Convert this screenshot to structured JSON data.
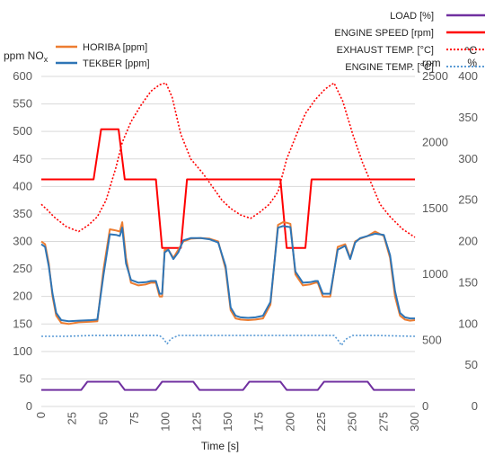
{
  "chart_data": {
    "type": "line",
    "xlabel": "Time [s]",
    "x_ticks": [
      "0",
      "25",
      "50",
      "75",
      "100",
      "125",
      "150",
      "175",
      "200",
      "225",
      "250",
      "275",
      "300"
    ],
    "xlim": [
      0,
      300
    ],
    "axes": {
      "left": {
        "label": "ppm NO",
        "label_sub": "x",
        "lim": [
          0,
          600
        ],
        "ticks": [
          "0",
          "50",
          "100",
          "150",
          "200",
          "250",
          "300",
          "350",
          "400",
          "450",
          "500",
          "550",
          "600"
        ]
      },
      "rpm": {
        "label": "rpm",
        "lim": [
          0,
          2500
        ],
        "ticks": [
          "0",
          "500",
          "1000",
          "1500",
          "2000",
          "2500"
        ]
      },
      "temp": {
        "label_top": "°C",
        "label_bottom": "%",
        "lim": [
          0,
          400
        ],
        "ticks": [
          "0",
          "50",
          "100",
          "150",
          "200",
          "250",
          "300",
          "350",
          "400"
        ]
      }
    },
    "legend_left": [
      {
        "name": "HORIBA [ppm]",
        "color": "#ed7d31",
        "style": "solid"
      },
      {
        "name": "TEKBER [ppm]",
        "color": "#2e75b6",
        "style": "solid"
      }
    ],
    "legend_right": [
      {
        "name": "LOAD [%]",
        "color": "#7030a0",
        "style": "solid"
      },
      {
        "name": "ENGINE SPEED [rpm]",
        "color": "#ff0000",
        "style": "solid"
      },
      {
        "name": "EXHAUST TEMP. [°C]",
        "color": "#ff0000",
        "style": "dotted"
      },
      {
        "name": "ENGINE TEMP. [°C]",
        "color": "#5b9bd5",
        "style": "dotted"
      }
    ],
    "series": [
      {
        "name": "LOAD [%]",
        "axis": "temp",
        "color": "#7030a0",
        "dash": "",
        "x": [
          0,
          32,
          37,
          62,
          67,
          92,
          97,
          122,
          127,
          162,
          167,
          192,
          197,
          222,
          227,
          262,
          267,
          300
        ],
        "y": [
          20,
          20,
          30,
          30,
          20,
          20,
          30,
          30,
          20,
          20,
          30,
          30,
          20,
          20,
          30,
          30,
          20,
          20
        ]
      },
      {
        "name": "ENGINE SPEED [rpm]",
        "axis": "rpm",
        "color": "#ff0000",
        "dash": "",
        "x": [
          0,
          42,
          48,
          62,
          67,
          92,
          97,
          112,
          117,
          142,
          147,
          192,
          197,
          212,
          217,
          242,
          247,
          292,
          297,
          300
        ],
        "y": [
          1720,
          1720,
          2100,
          2100,
          1720,
          1720,
          1200,
          1200,
          1720,
          1720,
          1720,
          1720,
          1200,
          1200,
          1720,
          1720,
          1720,
          1720,
          1720,
          1720
        ]
      },
      {
        "name": "EXHAUST TEMP. [°C]",
        "axis": "temp",
        "color": "#ff0000",
        "dash": "2 2",
        "x": [
          0,
          5,
          10,
          20,
          30,
          38,
          45,
          52,
          60,
          65,
          72,
          80,
          88,
          95,
          100,
          105,
          112,
          120,
          130,
          138,
          145,
          152,
          160,
          168,
          175,
          183,
          190,
          197,
          205,
          212,
          220,
          228,
          235,
          242,
          250,
          258,
          265,
          272,
          280,
          290,
          300
        ],
        "y": [
          245,
          238,
          230,
          218,
          212,
          220,
          230,
          250,
          290,
          320,
          345,
          365,
          382,
          390,
          392,
          375,
          330,
          300,
          282,
          265,
          250,
          240,
          232,
          228,
          235,
          245,
          260,
          300,
          330,
          355,
          372,
          385,
          392,
          370,
          330,
          295,
          270,
          245,
          230,
          215,
          205
        ]
      },
      {
        "name": "ENGINE TEMP. [°C]",
        "axis": "temp",
        "color": "#5b9bd5",
        "dash": "2 2",
        "x": [
          0,
          20,
          40,
          60,
          80,
          95,
          98,
          101,
          104,
          110,
          130,
          150,
          170,
          190,
          205,
          225,
          235,
          238,
          241,
          244,
          250,
          270,
          300
        ],
        "y": [
          85,
          85,
          86,
          86,
          86,
          86,
          82,
          76,
          82,
          86,
          86,
          86,
          86,
          86,
          86,
          86,
          86,
          81,
          74,
          81,
          86,
          86,
          85
        ]
      },
      {
        "name": "HORIBA [ppm]",
        "axis": "left",
        "color": "#ed7d31",
        "dash": "",
        "x": [
          0,
          3,
          6,
          9,
          12,
          16,
          22,
          30,
          40,
          45,
          50,
          55,
          60,
          63,
          65,
          68,
          72,
          78,
          84,
          88,
          92,
          95,
          97,
          99,
          102,
          106,
          110,
          114,
          120,
          128,
          135,
          142,
          148,
          152,
          156,
          160,
          166,
          172,
          178,
          184,
          190,
          194,
          197,
          200,
          204,
          210,
          216,
          220,
          222,
          226,
          232,
          238,
          244,
          248,
          252,
          256,
          262,
          268,
          275,
          280,
          284,
          288,
          292,
          296,
          300
        ],
        "y": [
          300,
          295,
          260,
          200,
          165,
          152,
          150,
          153,
          154,
          155,
          250,
          322,
          320,
          318,
          335,
          270,
          225,
          220,
          222,
          225,
          225,
          200,
          200,
          285,
          285,
          270,
          285,
          300,
          305,
          306,
          305,
          300,
          250,
          175,
          160,
          158,
          157,
          158,
          160,
          185,
          330,
          335,
          334,
          332,
          240,
          220,
          222,
          225,
          225,
          200,
          200,
          290,
          295,
          270,
          300,
          305,
          310,
          318,
          310,
          270,
          200,
          165,
          158,
          156,
          157
        ]
      },
      {
        "name": "TEKBER [ppm]",
        "axis": "left",
        "color": "#2e75b6",
        "dash": "",
        "x": [
          0,
          3,
          6,
          9,
          12,
          16,
          22,
          30,
          40,
          45,
          50,
          55,
          60,
          63,
          65,
          68,
          72,
          78,
          84,
          88,
          92,
          95,
          97,
          99,
          102,
          106,
          110,
          114,
          120,
          128,
          135,
          142,
          148,
          152,
          156,
          160,
          166,
          172,
          178,
          184,
          190,
          194,
          197,
          200,
          204,
          210,
          216,
          220,
          222,
          226,
          232,
          238,
          244,
          248,
          252,
          256,
          262,
          268,
          275,
          280,
          284,
          288,
          292,
          296,
          300
        ],
        "y": [
          295,
          290,
          255,
          205,
          170,
          157,
          155,
          156,
          157,
          158,
          240,
          313,
          312,
          310,
          325,
          260,
          230,
          225,
          226,
          228,
          228,
          205,
          205,
          280,
          285,
          268,
          280,
          302,
          306,
          306,
          304,
          298,
          255,
          180,
          165,
          162,
          161,
          162,
          165,
          190,
          325,
          328,
          327,
          326,
          245,
          225,
          226,
          228,
          228,
          205,
          205,
          285,
          292,
          268,
          298,
          306,
          310,
          314,
          312,
          275,
          210,
          170,
          162,
          160,
          160
        ]
      }
    ]
  }
}
